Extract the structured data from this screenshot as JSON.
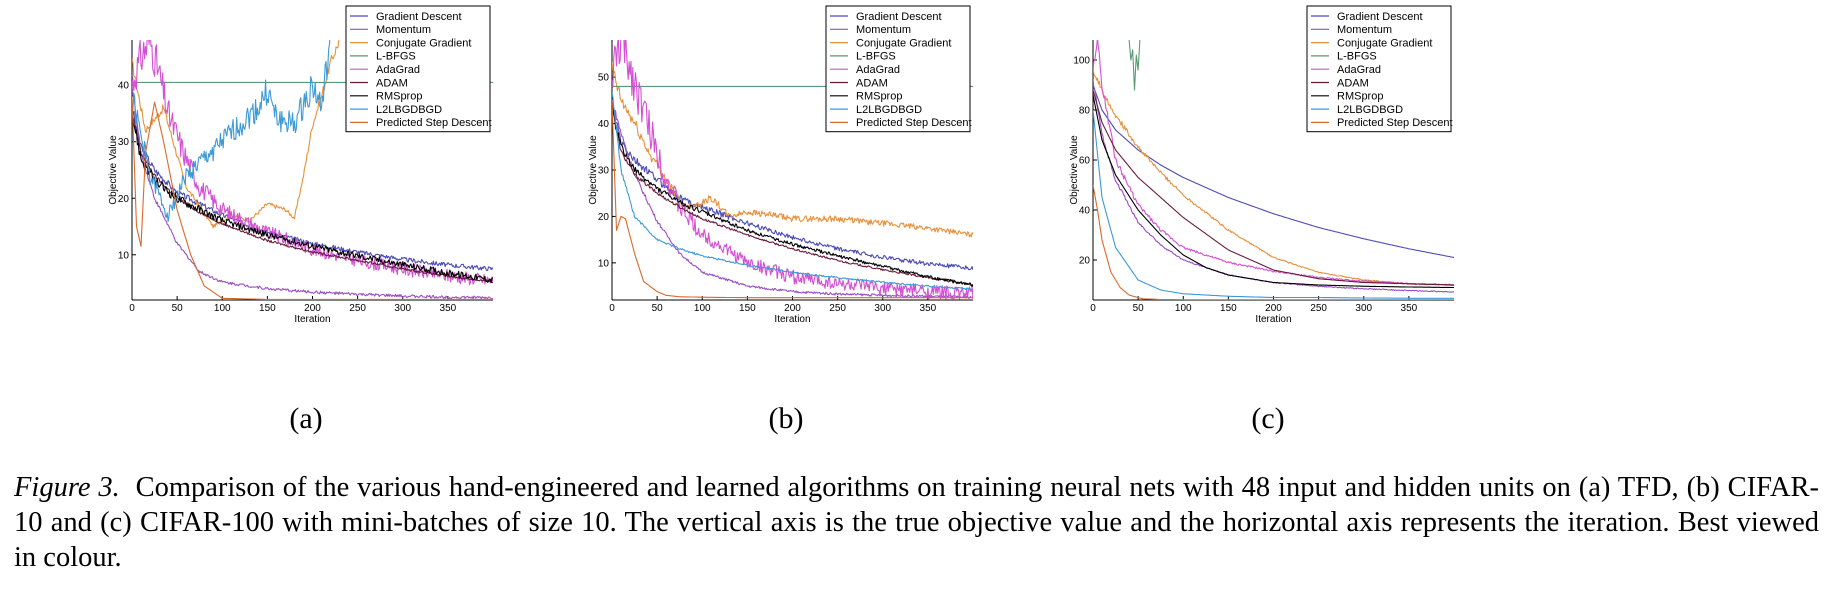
{
  "colors": {
    "Gradient Descent": "#4b4bb5",
    "Momentum": "#9a4ec4",
    "Conjugate Gradient": "#e8903a",
    "L-BFGS": "#5a9a72",
    "AdaGrad": "#d350d3",
    "ADAM": "#6a1a3a",
    "RMSprop": "#000000",
    "L2LBGDBGD": "#3c9ad6",
    "Predicted Step Descent": "#d96a2a"
  },
  "chart_data": [
    {
      "panel_label": "(a)",
      "type": "line",
      "xlabel": "Iteration",
      "ylabel": "Objective Value",
      "xlim": [
        0,
        400
      ],
      "ylim": [
        2,
        48
      ],
      "xticks": [
        0,
        50,
        100,
        150,
        200,
        250,
        300,
        350
      ],
      "yticks": [
        10,
        20,
        30,
        40
      ],
      "legend_position": "top-right",
      "series": [
        {
          "name": "Gradient Descent",
          "x": [
            0,
            10,
            25,
            50,
            75,
            100,
            150,
            200,
            250,
            300,
            350,
            400
          ],
          "y": [
            36,
            29,
            25,
            21,
            19,
            17,
            14,
            12,
            10.5,
            9.2,
            8.2,
            7.5
          ],
          "noise": 0.4
        },
        {
          "name": "Momentum",
          "x": [
            0,
            10,
            25,
            50,
            75,
            100,
            150,
            200,
            250,
            300,
            350,
            400
          ],
          "y": [
            40,
            28,
            20,
            12,
            7,
            5.2,
            4,
            3.4,
            3,
            2.7,
            2.5,
            2.4
          ],
          "noise": 0.25
        },
        {
          "name": "Conjugate Gradient",
          "x": [
            0,
            15,
            35,
            60,
            90,
            110,
            130,
            150,
            170,
            180,
            190,
            200,
            210,
            220,
            230
          ],
          "y": [
            44,
            32,
            36,
            22,
            15,
            17,
            16,
            19,
            18,
            16.5,
            24,
            33,
            38,
            44,
            48
          ],
          "noise": 0.3
        },
        {
          "name": "L-BFGS",
          "x": [
            0,
            400
          ],
          "y": [
            40.5,
            40.5
          ],
          "noise": 0
        },
        {
          "name": "AdaGrad",
          "x": [
            0,
            10,
            20,
            30,
            40,
            50,
            60,
            75,
            100,
            150,
            200,
            250,
            300,
            350,
            400
          ],
          "y": [
            40,
            45,
            48,
            42,
            35,
            31,
            27,
            22,
            18,
            14,
            11,
            9,
            7.5,
            6.3,
            5.4
          ],
          "noise": 1.2
        },
        {
          "name": "ADAM",
          "x": [
            0,
            10,
            25,
            50,
            75,
            100,
            150,
            200,
            250,
            300,
            350,
            400
          ],
          "y": [
            35,
            28,
            24,
            20,
            17.5,
            15.5,
            12.5,
            10.5,
            9,
            7.5,
            6.2,
            5.2
          ],
          "noise": 0.2
        },
        {
          "name": "RMSprop",
          "x": [
            0,
            10,
            25,
            50,
            75,
            100,
            150,
            200,
            250,
            300,
            350,
            400
          ],
          "y": [
            35,
            27,
            23,
            20,
            18,
            16,
            13.5,
            11.5,
            9.8,
            8.2,
            6.8,
            5.5
          ],
          "noise": 0.6
        },
        {
          "name": "L2LBGDBGD",
          "x": [
            0,
            20,
            40,
            60,
            80,
            100,
            120,
            140,
            150,
            160,
            180,
            200,
            210,
            220
          ],
          "y": [
            38,
            24,
            17,
            24,
            27,
            30,
            33,
            36,
            39,
            34,
            33,
            40,
            36,
            48
          ],
          "noise": 1.0
        },
        {
          "name": "Predicted Step Descent",
          "x": [
            0,
            5,
            10,
            15,
            25,
            35,
            50,
            65,
            80,
            100,
            150,
            200,
            300,
            400
          ],
          "y": [
            38,
            15,
            11.5,
            28,
            37,
            30,
            18,
            10,
            4.5,
            2.3,
            2.1,
            2.1,
            2.1,
            2.1
          ],
          "noise": 0
        }
      ]
    },
    {
      "panel_label": "(b)",
      "type": "line",
      "xlabel": "Iteration",
      "ylabel": "Objective Value",
      "xlim": [
        0,
        400
      ],
      "ylim": [
        2,
        58
      ],
      "xticks": [
        0,
        50,
        100,
        150,
        200,
        250,
        300,
        350
      ],
      "yticks": [
        10,
        20,
        30,
        40,
        50
      ],
      "legend_position": "top-right",
      "series": [
        {
          "name": "Gradient Descent",
          "x": [
            0,
            10,
            25,
            50,
            75,
            100,
            150,
            200,
            250,
            300,
            350,
            400
          ],
          "y": [
            44,
            36,
            32,
            28,
            24,
            22,
            18.5,
            15.5,
            13,
            11.2,
            9.8,
            8.8
          ],
          "noise": 0.45
        },
        {
          "name": "Momentum",
          "x": [
            0,
            10,
            25,
            50,
            75,
            100,
            150,
            200,
            250,
            300,
            350,
            400
          ],
          "y": [
            45,
            38,
            29,
            19,
            12,
            8,
            5,
            3.8,
            3.3,
            3,
            2.8,
            2.6
          ],
          "noise": 0.25
        },
        {
          "name": "Conjugate Gradient",
          "x": [
            0,
            10,
            25,
            40,
            60,
            80,
            100,
            110,
            130,
            150,
            170,
            200,
            250,
            300,
            350,
            400
          ],
          "y": [
            52,
            45,
            40,
            34,
            28,
            22,
            23,
            24,
            20,
            21,
            20.5,
            19.5,
            19.5,
            18.5,
            17.5,
            16
          ],
          "noise": 0.5
        },
        {
          "name": "L-BFGS",
          "x": [
            0,
            400
          ],
          "y": [
            48,
            48
          ],
          "noise": 0
        },
        {
          "name": "AdaGrad",
          "x": [
            0,
            10,
            20,
            30,
            40,
            50,
            60,
            75,
            100,
            150,
            200,
            250,
            300,
            350,
            400
          ],
          "y": [
            50,
            58,
            52,
            46,
            40,
            34,
            28,
            22,
            16,
            10,
            7,
            5.5,
            4.5,
            3.8,
            3.3
          ],
          "noise": 1.5
        },
        {
          "name": "ADAM",
          "x": [
            0,
            10,
            25,
            50,
            75,
            100,
            150,
            200,
            250,
            300,
            350,
            400
          ],
          "y": [
            44,
            34,
            29,
            25,
            22,
            19.5,
            16,
            13,
            10.5,
            8.5,
            6.8,
            5.2
          ],
          "noise": 0.2
        },
        {
          "name": "RMSprop",
          "x": [
            0,
            10,
            25,
            50,
            75,
            100,
            150,
            200,
            250,
            300,
            350,
            400
          ],
          "y": [
            43,
            35,
            30,
            26,
            23,
            21,
            17,
            14,
            11.5,
            9.2,
            7,
            5.2
          ],
          "noise": 0.35
        },
        {
          "name": "L2LBGDBGD",
          "x": [
            0,
            10,
            25,
            50,
            75,
            100,
            150,
            200,
            250,
            300,
            350,
            400
          ],
          "y": [
            47,
            30,
            20,
            15,
            13,
            11.5,
            9.5,
            8,
            6.8,
            5.8,
            5,
            4.3
          ],
          "noise": 0.2
        },
        {
          "name": "Predicted Step Descent",
          "x": [
            0,
            5,
            10,
            15,
            25,
            35,
            50,
            60,
            75,
            100,
            150,
            400
          ],
          "y": [
            45,
            17,
            20,
            19.5,
            12,
            6,
            3.8,
            3,
            2.7,
            2.6,
            2.5,
            2.5
          ],
          "noise": 0
        }
      ]
    },
    {
      "panel_label": "(c)",
      "type": "line",
      "xlabel": "Iteration",
      "ylabel": "Objective Value",
      "xlim": [
        0,
        400
      ],
      "ylim": [
        4,
        108
      ],
      "xticks": [
        0,
        50,
        100,
        150,
        200,
        250,
        300,
        350
      ],
      "yticks": [
        20,
        40,
        60,
        80,
        100
      ],
      "legend_position": "top-right",
      "series": [
        {
          "name": "Gradient Descent",
          "x": [
            0,
            10,
            25,
            50,
            75,
            100,
            150,
            200,
            250,
            300,
            350,
            400
          ],
          "y": [
            90,
            80,
            72,
            64,
            58,
            53,
            45,
            38.5,
            33,
            28.5,
            24.5,
            21
          ],
          "noise": 0
        },
        {
          "name": "Momentum",
          "x": [
            0,
            10,
            25,
            50,
            75,
            100,
            150,
            200,
            250,
            300,
            350,
            400
          ],
          "y": [
            92,
            70,
            52,
            35,
            26,
            20,
            14,
            11,
            9.5,
            8.5,
            7.8,
            7.2
          ],
          "noise": 0.2
        },
        {
          "name": "Conjugate Gradient",
          "x": [
            0,
            10,
            25,
            50,
            75,
            100,
            150,
            200,
            250,
            300,
            350,
            400
          ],
          "y": [
            96,
            88,
            78,
            65,
            55,
            46,
            32,
            21,
            15,
            12,
            10.5,
            10
          ],
          "noise": 0.2
        },
        {
          "name": "L-BFGS",
          "x": [
            40,
            42,
            44,
            46,
            48,
            50,
            52
          ],
          "y": [
            108,
            100,
            104,
            88,
            102,
            96,
            108
          ],
          "noise": 0
        },
        {
          "name": "AdaGrad",
          "x": [
            0,
            5,
            10,
            15,
            25,
            50,
            75,
            100,
            150,
            200,
            250,
            300,
            350,
            400
          ],
          "y": [
            96,
            108,
            90,
            80,
            60,
            42,
            32,
            25,
            19,
            15.5,
            13,
            11.5,
            10.5,
            10
          ],
          "noise": 0.3
        },
        {
          "name": "ADAM",
          "x": [
            0,
            10,
            25,
            50,
            75,
            100,
            150,
            200,
            250,
            300,
            350,
            400
          ],
          "y": [
            88,
            75,
            64,
            53,
            45,
            37,
            24,
            16,
            12.5,
            11,
            10.5,
            10
          ],
          "noise": 0
        },
        {
          "name": "RMSprop",
          "x": [
            0,
            10,
            25,
            50,
            75,
            100,
            125,
            150,
            200,
            250,
            300,
            350,
            400
          ],
          "y": [
            86,
            68,
            54,
            40,
            30,
            22,
            17,
            14,
            11,
            10,
            9.5,
            9.2,
            9
          ],
          "noise": 0
        },
        {
          "name": "L2LBGDBGD",
          "x": [
            0,
            10,
            25,
            50,
            75,
            100,
            150,
            200,
            250,
            300,
            350,
            400
          ],
          "y": [
            80,
            45,
            25,
            12,
            8,
            6.5,
            5.5,
            5,
            5,
            4.8,
            4.7,
            4.7
          ],
          "noise": 0
        },
        {
          "name": "Predicted Step Descent",
          "x": [
            0,
            5,
            10,
            20,
            30,
            40,
            55,
            75,
            100,
            400
          ],
          "y": [
            50,
            40,
            28,
            15,
            9,
            6,
            4.5,
            4.2,
            4.1,
            4.1
          ],
          "noise": 0
        }
      ]
    }
  ],
  "caption": {
    "figure_label": "Figure 3.",
    "text": "Comparison of the various hand-engineered and learned algorithms on training neural nets with 48 input and hidden units on (a) TFD, (b) CIFAR-10 and (c) CIFAR-100 with mini-batches of size 10. The vertical axis is the true objective value and the horizontal axis represents the iteration. Best viewed in colour."
  }
}
